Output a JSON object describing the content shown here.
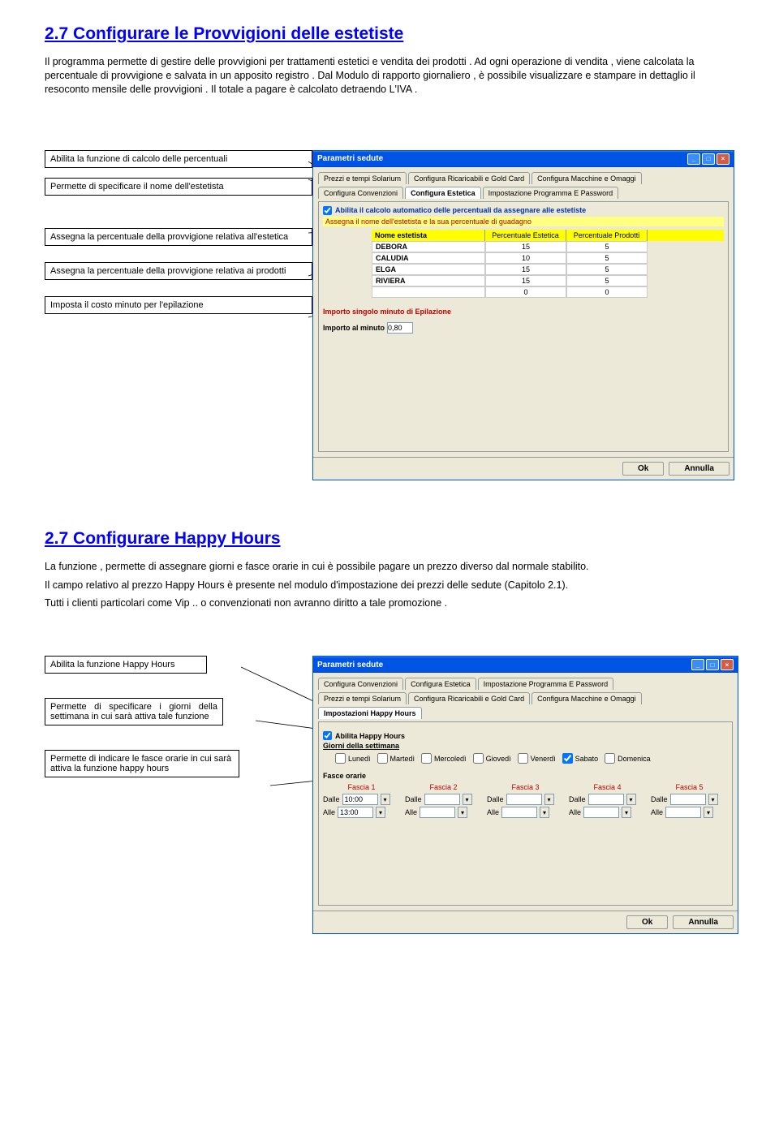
{
  "section1": {
    "title": "2.7 Configurare le Provvigioni delle estetiste",
    "title_color": "#0000ff",
    "para1": "Il programma permette di gestire delle provvigioni per trattamenti estetici e vendita dei prodotti . Ad ogni operazione di vendita , viene calcolata la percentuale di provvigione e salvata in un apposito registro . Dal Modulo di rapporto giornaliero , è possibile visualizzare e stampare in dettaglio il resoconto mensile delle provvigioni . Il totale a pagare è calcolato detraendo L'IVA .",
    "callouts": {
      "c1": "Abilita la funzione di calcolo delle percentuali",
      "c2": "Permette di specificare il nome dell'estetista",
      "c3": "Assegna la percentuale della provvigione relativa all'estetica",
      "c4": "Assegna la percentuale della provvigione relativa ai prodotti",
      "c5": "Imposta il costo minuto per l'epilazione"
    },
    "window": {
      "title": "Parametri sedute",
      "tabs": {
        "r1": [
          "Prezzi e tempi Solarium",
          "Configura Ricaricabili e Gold Card",
          "Configura Macchine e Omaggi"
        ],
        "r2": [
          "Configura Convenzioni",
          "Configura Estetica",
          "Impostazione Programma E Password"
        ]
      },
      "active_tab": "Configura Estetica",
      "check1": "Abilita il calcolo automatico delle percentuali da assegnare alle estetiste",
      "red_line": "Assegna il nome dell'estetista e la sua percentuale di guadagno",
      "columns": [
        "Nome estetista",
        "Percentuale Estetica",
        "Percentuale Prodotti"
      ],
      "rows": [
        {
          "name": "DEBORA",
          "est": "15",
          "prod": "5"
        },
        {
          "name": "CALUDIA",
          "est": "10",
          "prod": "5"
        },
        {
          "name": "ELGA",
          "est": "15",
          "prod": "5"
        },
        {
          "name": "RIVIERA",
          "est": "15",
          "prod": "5"
        },
        {
          "name": "",
          "est": "0",
          "prod": "0"
        }
      ],
      "importo_label": "Importo singolo minuto di Epilazione",
      "importo_line": "Importo al minuto",
      "importo_value": "0,80",
      "ok": "Ok",
      "cancel": "Annulla"
    }
  },
  "section2": {
    "title": "2.7 Configurare Happy Hours",
    "title_color": "#0000ff",
    "para1": "La funzione , permette di assegnare giorni e fasce orarie in cui è possibile pagare un prezzo diverso dal normale stabilito.",
    "para2": "Il campo relativo al prezzo Happy Hours è presente nel modulo d'impostazione dei prezzi delle sedute (Capitolo 2.1).",
    "para3": "Tutti i clienti particolari come Vip .. o convenzionati non avranno diritto a tale promozione .",
    "callouts": {
      "c1": "Abilita la funzione Happy Hours",
      "c2": "Permette di specificare i giorni della settimana in cui sarà attiva tale funzione",
      "c3": "Permette di indicare le fasce orarie in cui sarà attiva la funzione happy hours"
    },
    "window": {
      "title": "Parametri sedute",
      "tabs": {
        "r1": [
          "Configura Convenzioni",
          "Configura Estetica",
          "Impostazione Programma E Password"
        ],
        "r2": [
          "Prezzi e tempi Solarium",
          "Configura Ricaricabili e Gold Card",
          "Configura Macchine e Omaggi"
        ],
        "r3": [
          "Impostazioni Happy Hours"
        ]
      },
      "check1": "Abilita Happy Hours",
      "giorni_label": "Giorni della settimana",
      "days": [
        "Lunedì",
        "Martedì",
        "Mercoledì",
        "Giovedì",
        "Venerdì",
        "Sabato",
        "Domenica"
      ],
      "days_checked": [
        false,
        false,
        false,
        false,
        false,
        true,
        false
      ],
      "fasce_label": "Fasce orarie",
      "fasce": [
        "Fascia 1",
        "Fascia 2",
        "Fascia 3",
        "Fascia 4",
        "Fascia 5"
      ],
      "dalle": "Dalle",
      "alle": "Alle",
      "fascia1_dalle": "10:00",
      "fascia1_alle": "13:00",
      "ok": "Ok",
      "cancel": "Annulla"
    }
  }
}
